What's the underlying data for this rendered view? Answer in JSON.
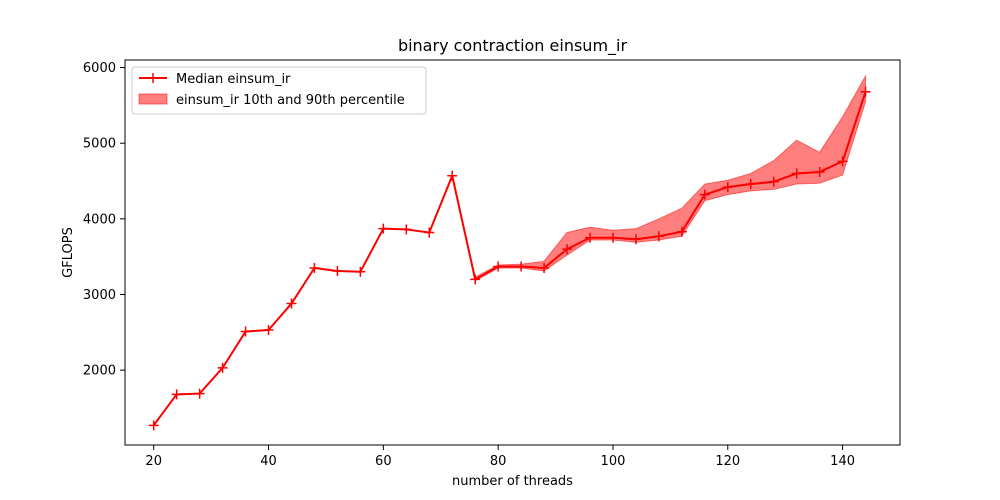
{
  "chart_data": {
    "type": "line",
    "title": "binary contraction einsum_ir",
    "xlabel": "number of threads",
    "ylabel": "GFLOPS",
    "xlim": [
      15,
      150
    ],
    "ylim": [
      1010,
      6100
    ],
    "xticks": [
      20,
      40,
      60,
      80,
      100,
      120,
      140
    ],
    "yticks": [
      2000,
      3000,
      4000,
      5000,
      6000
    ],
    "grid": false,
    "legend_position": "top-left",
    "x": [
      20,
      24,
      28,
      32,
      36,
      40,
      44,
      48,
      52,
      56,
      60,
      64,
      68,
      72,
      76,
      80,
      84,
      88,
      92,
      96,
      100,
      104,
      108,
      112,
      116,
      120,
      124,
      128,
      132,
      136,
      140,
      144
    ],
    "series": [
      {
        "name": "Median einsum_ir",
        "kind": "line",
        "marker": "+",
        "color": "#ff0000",
        "values": [
          1270,
          1680,
          1690,
          2030,
          2510,
          2530,
          2880,
          3350,
          3310,
          3300,
          3870,
          3860,
          3820,
          4570,
          3200,
          3370,
          3370,
          3350,
          3600,
          3750,
          3750,
          3730,
          3770,
          3830,
          4320,
          4420,
          4460,
          4490,
          4600,
          4620,
          4760,
          5680
        ]
      },
      {
        "name": "einsum_ir 10th and 90th percentile",
        "kind": "band",
        "color": "#ff0000",
        "opacity": 0.5,
        "lower": [
          1270,
          1680,
          1690,
          2030,
          2510,
          2530,
          2880,
          3350,
          3310,
          3300,
          3870,
          3860,
          3820,
          4570,
          3180,
          3350,
          3350,
          3310,
          3520,
          3720,
          3720,
          3690,
          3720,
          3770,
          4240,
          4320,
          4370,
          4390,
          4460,
          4470,
          4580,
          5550
        ],
        "upper": [
          1270,
          1680,
          1690,
          2030,
          2510,
          2530,
          2880,
          3350,
          3310,
          3300,
          3870,
          3860,
          3820,
          4570,
          3230,
          3390,
          3400,
          3440,
          3820,
          3890,
          3850,
          3870,
          4000,
          4140,
          4460,
          4510,
          4600,
          4770,
          5040,
          4880,
          5350,
          5890
        ]
      }
    ]
  }
}
